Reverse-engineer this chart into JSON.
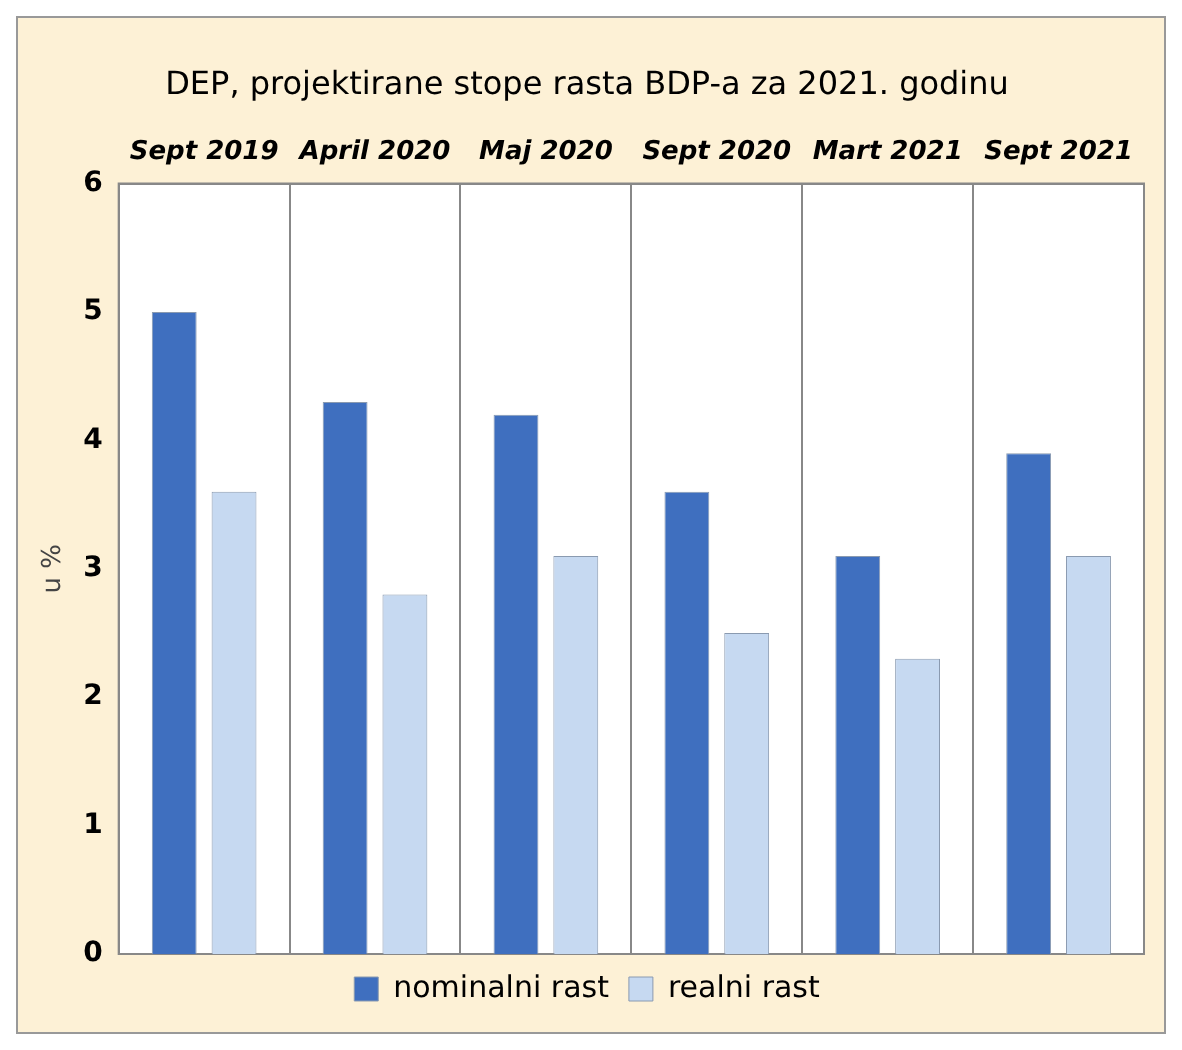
{
  "chart_data": {
    "type": "bar",
    "title": "DEP, projektirane stope rasta BDP-a za 2021. godinu",
    "ylabel": "u %",
    "categories": [
      "Sept 2019",
      "April 2020",
      "Maj 2020",
      "Sept 2020",
      "Mart 2021",
      "Sept 2021"
    ],
    "series": [
      {
        "name": "nominalni rast",
        "color": "#3f6fbf",
        "values": [
          5.0,
          4.3,
          4.2,
          3.6,
          3.1,
          3.9
        ]
      },
      {
        "name": "realni rast",
        "color": "#c6d9f1",
        "values": [
          3.6,
          2.8,
          3.1,
          2.5,
          2.3,
          3.1
        ]
      }
    ],
    "ylim": [
      0,
      6
    ],
    "yticks": [
      0,
      1,
      2,
      3,
      4,
      5,
      6
    ],
    "grid": "x",
    "legend": "bottom"
  }
}
